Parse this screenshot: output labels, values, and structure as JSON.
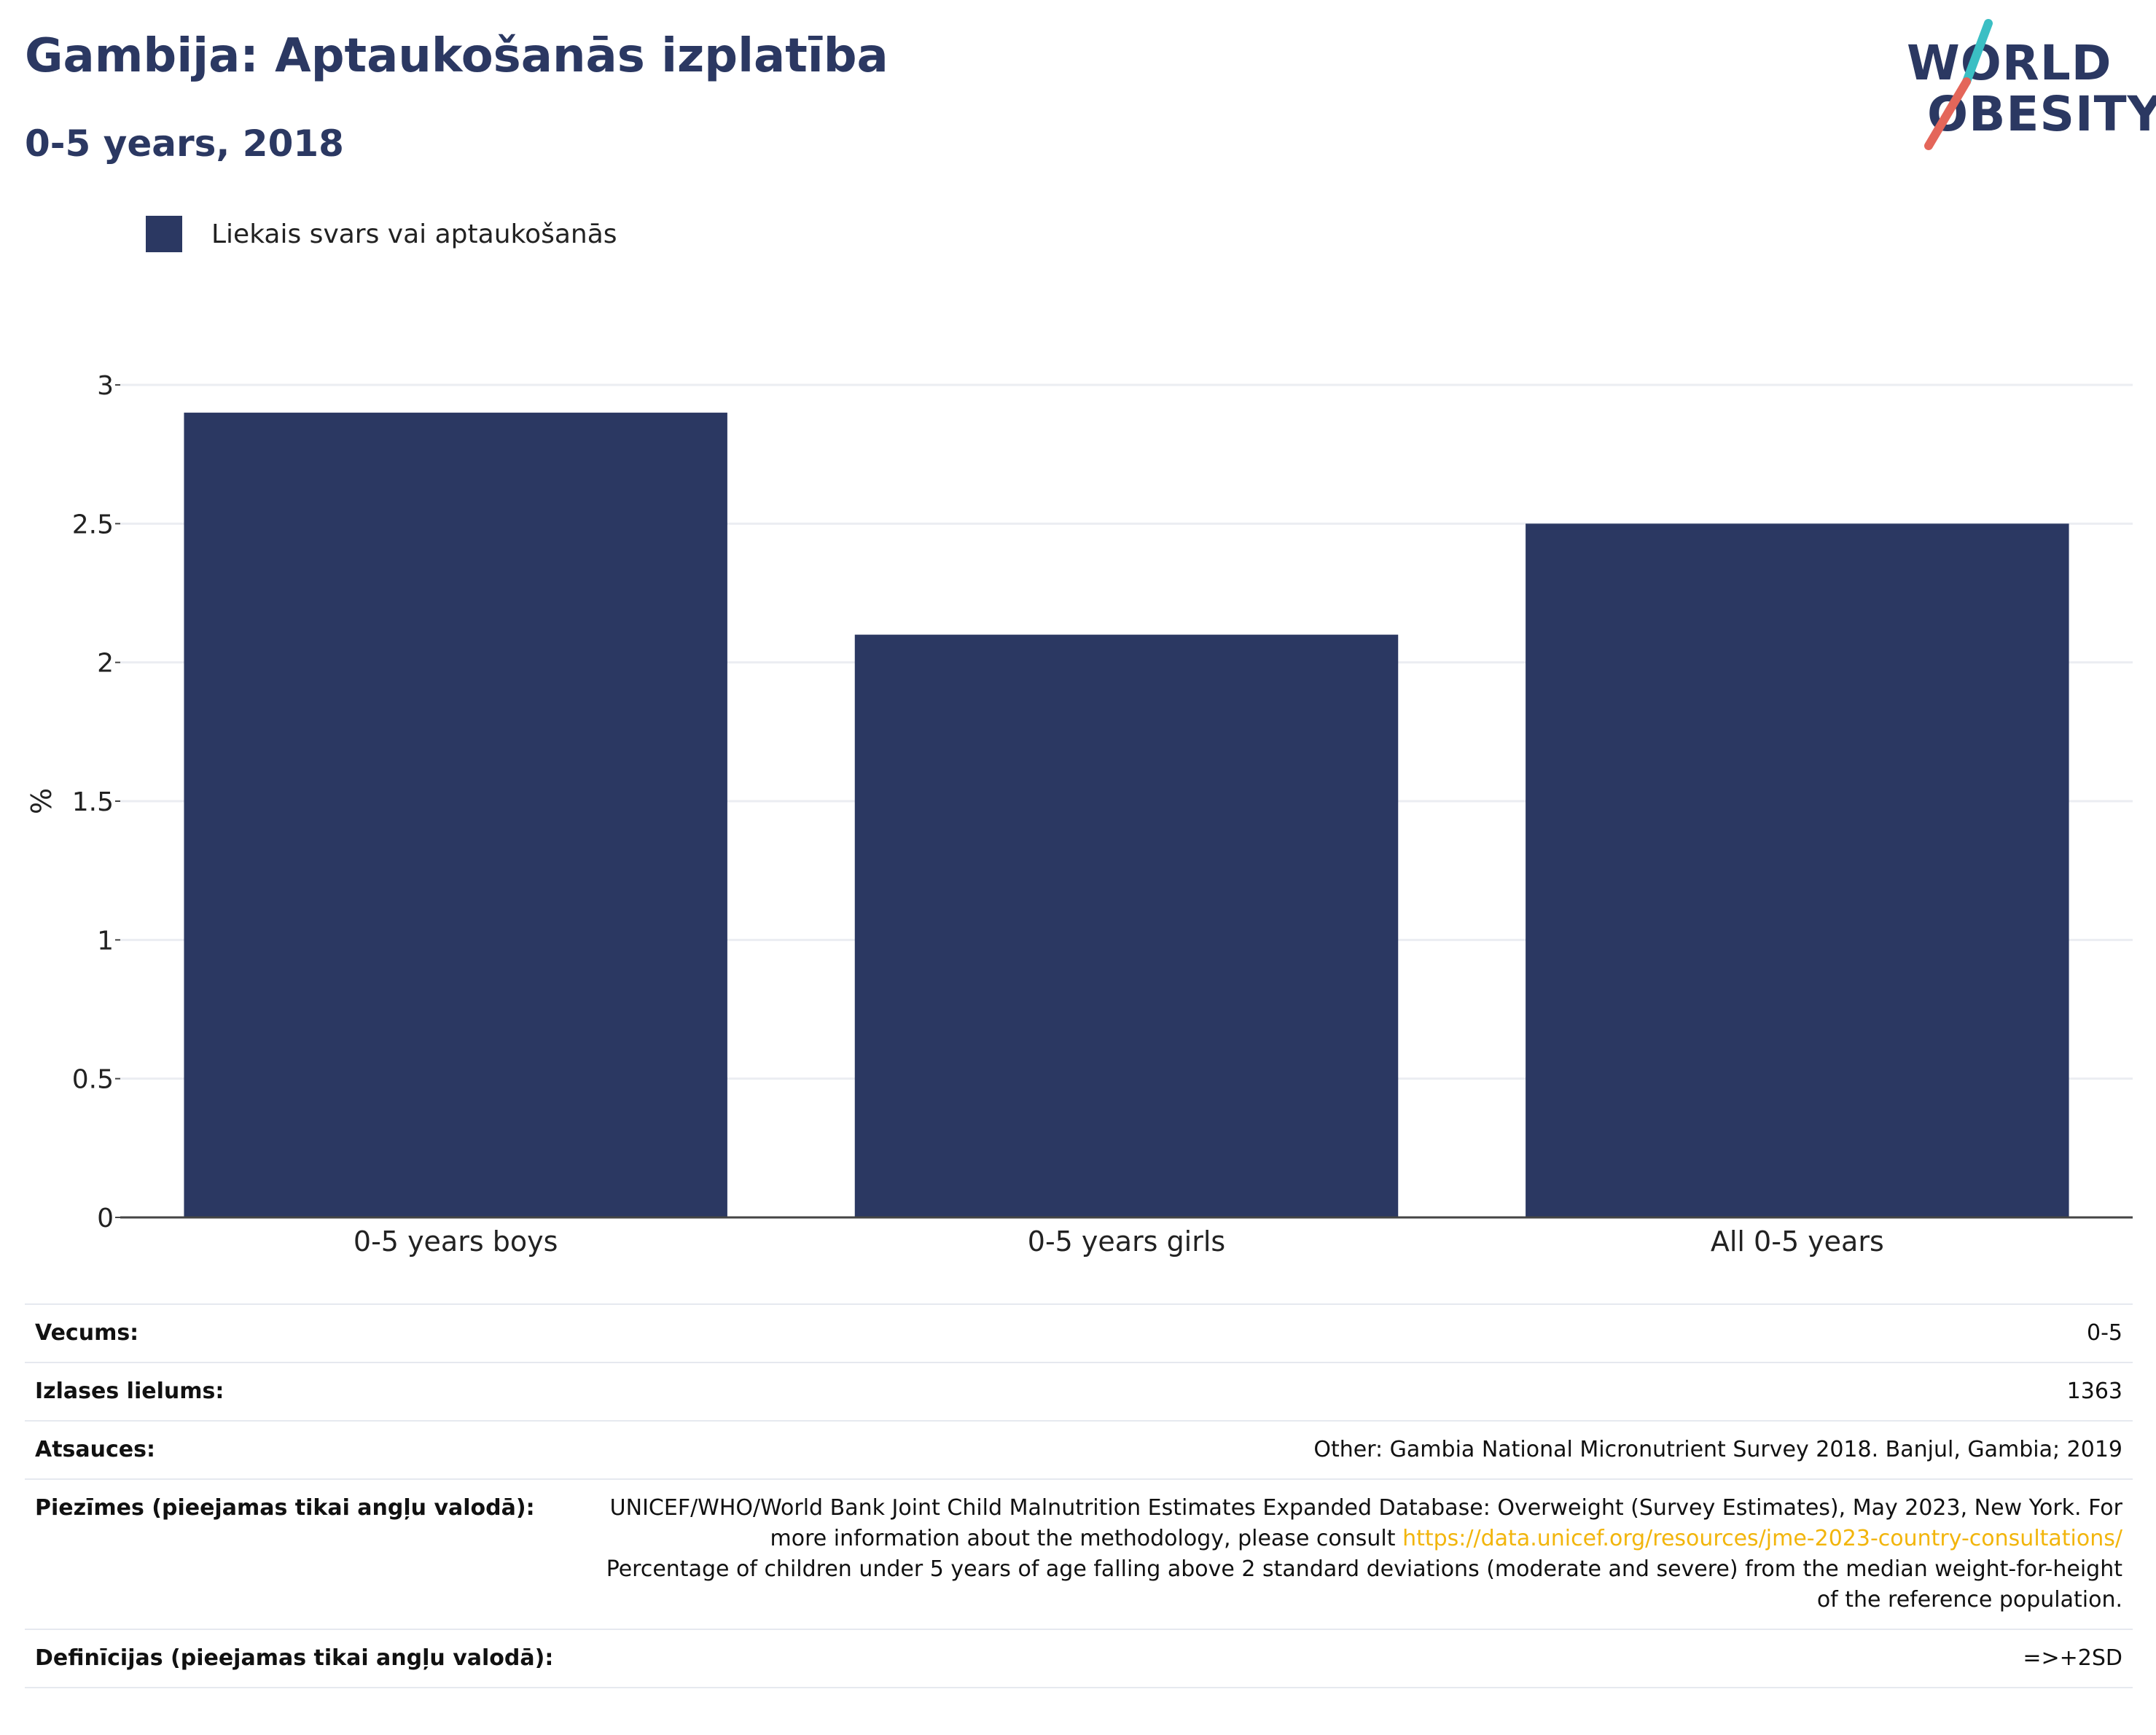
{
  "header": {
    "title": "Gambija: Aptaukošanās izplatība",
    "subtitle": "0-5 years, 2018"
  },
  "logo": {
    "line1": "WORLD",
    "line2": "OBESITY",
    "colors": {
      "text": "#2b3862",
      "slash_top": "#3bbfc4",
      "slash_bottom": "#e4665a"
    }
  },
  "legend": {
    "label": "Liekais svars vai aptaukošanās",
    "color": "#2b3862"
  },
  "chart_data": {
    "type": "bar",
    "categories": [
      "0-5 years boys",
      "0-5 years girls",
      "All 0-5 years"
    ],
    "series": [
      {
        "name": "Liekais svars vai aptaukošanās",
        "values": [
          2.9,
          2.1,
          2.5
        ],
        "color": "#2b3862"
      }
    ],
    "title": "Gambija: Aptaukošanās izplatība",
    "subtitle": "0-5 years, 2018",
    "xlabel": "",
    "ylabel": "%",
    "ylim": [
      0,
      3
    ],
    "yticks": [
      0,
      0.5,
      1,
      1.5,
      2,
      2.5,
      3
    ],
    "ytick_labels": [
      "0",
      "0.5",
      "1",
      "1.5",
      "2",
      "2.5",
      "3"
    ],
    "grid": true,
    "legend_position": "top-left"
  },
  "info": {
    "age": {
      "label": "Vecums:",
      "value": "0-5"
    },
    "sample_size": {
      "label": "Izlases lielums:",
      "value": "1363"
    },
    "references": {
      "label": "Atsauces:",
      "value": "Other: Gambia National Micronutrient Survey 2018. Banjul, Gambia; 2019"
    },
    "notes": {
      "label": "Piezīmes (pieejamas tikai angļu valodā):",
      "text_1": "UNICEF/WHO/World Bank Joint Child Malnutrition Estimates Expanded Database: Overweight (Survey Estimates), May 2023, New York. For more information about the methodology, please consult",
      "link": "https://data.unicef.org/resources/jme-2023-country-consultations/",
      "text_2": "Percentage of children under 5 years of age falling above 2 standard deviations (moderate and severe) from the median weight-for-height of the reference population."
    },
    "definitions": {
      "label": "Definīcijas (pieejamas tikai angļu valodā):",
      "value": "=>+2SD"
    }
  }
}
